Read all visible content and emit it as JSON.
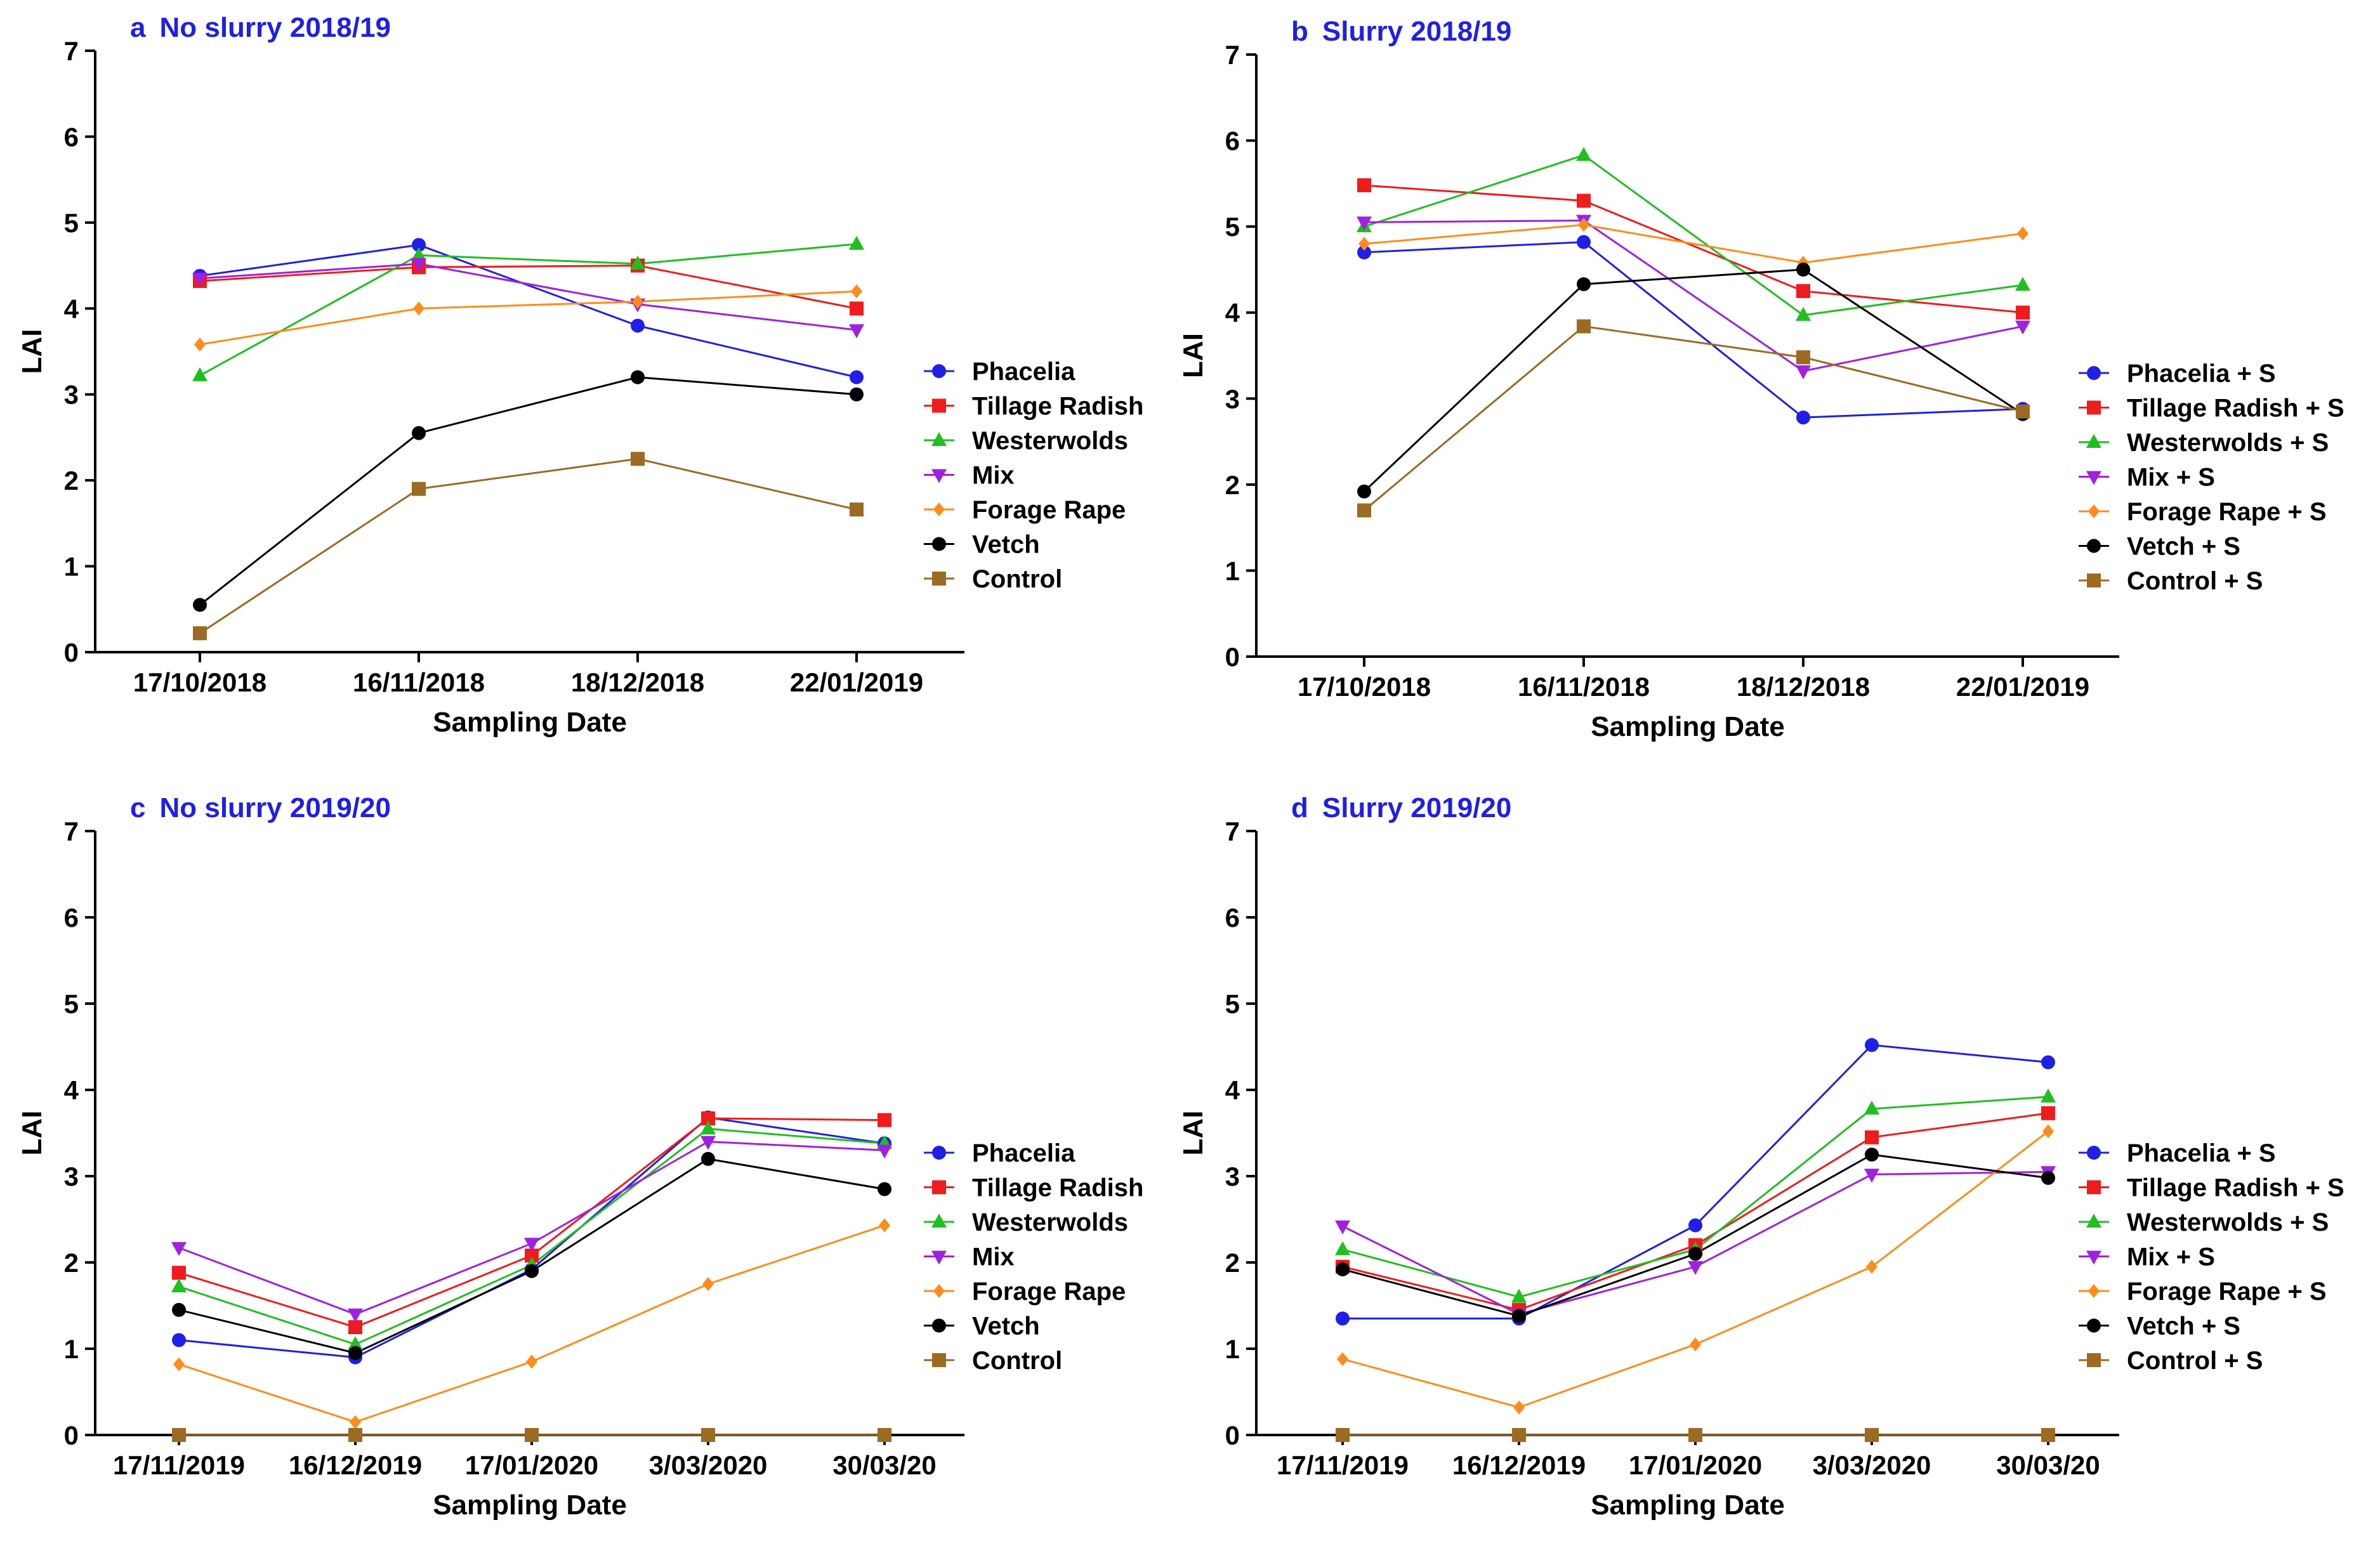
{
  "chart_data": [
    {
      "type": "line",
      "panel_letter": "a",
      "title": "No slurry 2018/19",
      "xlabel": "Sampling Date",
      "ylabel": "LAI",
      "ylim": [
        0,
        7
      ],
      "yticks": [
        "0",
        "1",
        "2",
        "3",
        "4",
        "5",
        "6",
        "7"
      ],
      "categories": [
        "17/10/2018",
        "16/11/2018",
        "18/12/2018",
        "22/01/2019"
      ],
      "legend_position": "right",
      "series": [
        {
          "name": "Phacelia",
          "color": "#1f1fe6",
          "marker": "circle",
          "values": [
            4.38,
            4.74,
            3.8,
            3.2
          ]
        },
        {
          "name": "Tillage Radish",
          "color": "#ee1c1c",
          "marker": "square",
          "values": [
            4.32,
            4.48,
            4.5,
            4.0
          ]
        },
        {
          "name": "Westerwolds",
          "color": "#1fbf1f",
          "marker": "triangle-up",
          "values": [
            3.22,
            4.62,
            4.52,
            4.75
          ]
        },
        {
          "name": "Mix",
          "color": "#a020e0",
          "marker": "triangle-down",
          "values": [
            4.35,
            4.52,
            4.05,
            3.75
          ]
        },
        {
          "name": "Forage Rape",
          "color": "#ff8c1a",
          "marker": "diamond",
          "values": [
            3.58,
            4.0,
            4.08,
            4.2
          ]
        },
        {
          "name": "Vetch",
          "color": "#000000",
          "marker": "circle",
          "values": [
            0.55,
            2.55,
            3.2,
            3.0
          ]
        },
        {
          "name": "Control",
          "color": "#9c6a22",
          "marker": "square",
          "values": [
            0.22,
            1.9,
            2.25,
            1.66
          ]
        }
      ]
    },
    {
      "type": "line",
      "panel_letter": "b",
      "title": "Slurry 2018/19",
      "xlabel": "Sampling Date",
      "ylabel": "LAI",
      "ylim": [
        0,
        7
      ],
      "yticks": [
        "0",
        "1",
        "2",
        "3",
        "4",
        "5",
        "6",
        "7"
      ],
      "categories": [
        "17/10/2018",
        "16/11/2018",
        "18/12/2018",
        "22/01/2019"
      ],
      "legend_position": "right",
      "series": [
        {
          "name": "Phacelia + S",
          "color": "#1f1fe6",
          "marker": "circle",
          "values": [
            4.7,
            4.82,
            2.78,
            2.88
          ]
        },
        {
          "name": "Tillage Radish + S",
          "color": "#ee1c1c",
          "marker": "square",
          "values": [
            5.48,
            5.3,
            4.25,
            4.0
          ]
        },
        {
          "name": "Westerwolds + S",
          "color": "#1fbf1f",
          "marker": "triangle-up",
          "values": [
            5.0,
            5.83,
            3.97,
            4.32
          ]
        },
        {
          "name": "Mix + S",
          "color": "#a020e0",
          "marker": "triangle-down",
          "values": [
            5.05,
            5.07,
            3.32,
            3.84
          ]
        },
        {
          "name": "Forage Rape + S",
          "color": "#ff8c1a",
          "marker": "diamond",
          "values": [
            4.8,
            5.02,
            4.58,
            4.92
          ]
        },
        {
          "name": "Vetch + S",
          "color": "#000000",
          "marker": "circle",
          "values": [
            1.92,
            4.33,
            4.5,
            2.82
          ]
        },
        {
          "name": "Control + S",
          "color": "#9c6a22",
          "marker": "square",
          "values": [
            1.7,
            3.84,
            3.48,
            2.85
          ]
        }
      ]
    },
    {
      "type": "line",
      "panel_letter": "c",
      "title": "No slurry 2019/20",
      "xlabel": "Sampling Date",
      "ylabel": "LAI",
      "ylim": [
        0,
        7
      ],
      "yticks": [
        "0",
        "1",
        "2",
        "3",
        "4",
        "5",
        "6",
        "7"
      ],
      "categories": [
        "17/11/2019",
        "16/12/2019",
        "17/01/2020",
        "3/03/2020",
        "30/03/20"
      ],
      "legend_position": "right",
      "series": [
        {
          "name": "Phacelia",
          "color": "#1f1fe6",
          "marker": "circle",
          "values": [
            1.1,
            0.9,
            1.92,
            3.68,
            3.38
          ]
        },
        {
          "name": "Tillage Radish",
          "color": "#ee1c1c",
          "marker": "square",
          "values": [
            1.88,
            1.25,
            2.08,
            3.67,
            3.65
          ]
        },
        {
          "name": "Westerwolds",
          "color": "#1fbf1f",
          "marker": "triangle-up",
          "values": [
            1.72,
            1.05,
            1.97,
            3.55,
            3.38
          ]
        },
        {
          "name": "Mix",
          "color": "#a020e0",
          "marker": "triangle-down",
          "values": [
            2.17,
            1.4,
            2.22,
            3.4,
            3.3
          ]
        },
        {
          "name": "Forage Rape",
          "color": "#ff8c1a",
          "marker": "diamond",
          "values": [
            0.82,
            0.15,
            0.85,
            1.75,
            2.43
          ]
        },
        {
          "name": "Vetch",
          "color": "#000000",
          "marker": "circle",
          "values": [
            1.45,
            0.95,
            1.9,
            3.2,
            2.85
          ]
        },
        {
          "name": "Control",
          "color": "#9c6a22",
          "marker": "square",
          "values": [
            0,
            0,
            0,
            0,
            0
          ]
        }
      ]
    },
    {
      "type": "line",
      "panel_letter": "d",
      "title": "Slurry 2019/20",
      "xlabel": "Sampling Date",
      "ylabel": "LAI",
      "ylim": [
        0,
        7
      ],
      "yticks": [
        "0",
        "1",
        "2",
        "3",
        "4",
        "5",
        "6",
        "7"
      ],
      "categories": [
        "17/11/2019",
        "16/12/2019",
        "17/01/2020",
        "3/03/2020",
        "30/03/20"
      ],
      "legend_position": "right",
      "series": [
        {
          "name": "Phacelia + S",
          "color": "#1f1fe6",
          "marker": "circle",
          "values": [
            1.35,
            1.35,
            2.43,
            4.52,
            4.32
          ]
        },
        {
          "name": "Tillage Radish + S",
          "color": "#ee1c1c",
          "marker": "square",
          "values": [
            1.95,
            1.45,
            2.2,
            3.45,
            3.73
          ]
        },
        {
          "name": "Westerwolds + S",
          "color": "#1fbf1f",
          "marker": "triangle-up",
          "values": [
            2.15,
            1.6,
            2.15,
            3.78,
            3.92
          ]
        },
        {
          "name": "Mix + S",
          "color": "#a020e0",
          "marker": "triangle-down",
          "values": [
            2.42,
            1.4,
            1.95,
            3.02,
            3.05
          ]
        },
        {
          "name": "Forage Rape + S",
          "color": "#ff8c1a",
          "marker": "diamond",
          "values": [
            0.88,
            0.32,
            1.05,
            1.95,
            3.52
          ]
        },
        {
          "name": "Vetch + S",
          "color": "#000000",
          "marker": "circle",
          "values": [
            1.92,
            1.38,
            2.1,
            3.25,
            2.98
          ]
        },
        {
          "name": "Control + S",
          "color": "#9c6a22",
          "marker": "square",
          "values": [
            0,
            0,
            0,
            0,
            0
          ]
        }
      ]
    }
  ]
}
